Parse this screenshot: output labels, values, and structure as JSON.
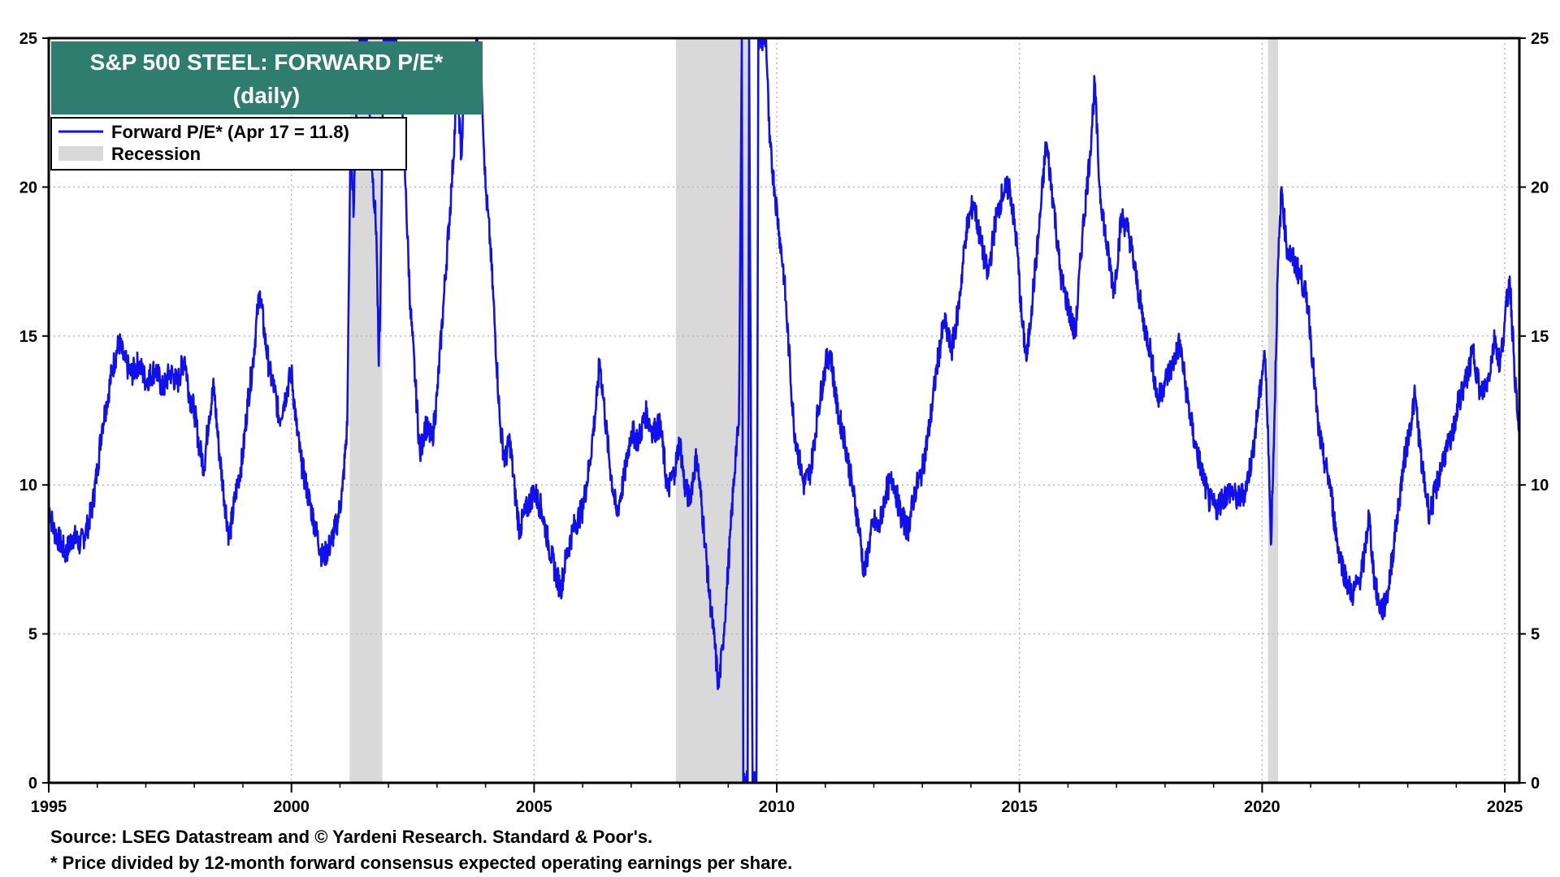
{
  "chart_data": {
    "type": "line",
    "title": "S&P 500 STEEL: FORWARD P/E*",
    "subtitle": "(daily)",
    "xlim": [
      1995,
      2025.3
    ],
    "ylim": [
      0,
      25
    ],
    "x_ticks": [
      "1995",
      "2000",
      "2005",
      "2010",
      "2015",
      "2020",
      "2025"
    ],
    "y_ticks": [
      "0",
      "5",
      "10",
      "15",
      "20",
      "25"
    ],
    "grid": true,
    "legend_position": "top-left",
    "legend": [
      {
        "label": "Forward P/E* (Apr 17 = 11.8)",
        "color": "#1010ee",
        "kind": "line"
      },
      {
        "label": "Recession",
        "color": "#d9d9d9",
        "kind": "band"
      }
    ],
    "recessions": [
      [
        2001.2,
        2001.87
      ],
      [
        2007.92,
        2009.42
      ],
      [
        2020.12,
        2020.33
      ]
    ],
    "series": [
      {
        "name": "Forward P/E* (Apr 17 = 11.8)",
        "color": "#1010ee",
        "points": [
          [
            1995.0,
            9.3
          ],
          [
            1995.1,
            8.5
          ],
          [
            1995.2,
            8.2
          ],
          [
            1995.35,
            7.7
          ],
          [
            1995.5,
            8.3
          ],
          [
            1995.65,
            8.0
          ],
          [
            1995.8,
            8.6
          ],
          [
            1995.9,
            9.3
          ],
          [
            1996.0,
            10.5
          ],
          [
            1996.1,
            12.0
          ],
          [
            1996.2,
            12.8
          ],
          [
            1996.3,
            13.8
          ],
          [
            1996.45,
            14.8
          ],
          [
            1996.55,
            14.2
          ],
          [
            1996.7,
            13.7
          ],
          [
            1996.85,
            14.1
          ],
          [
            1997.0,
            13.5
          ],
          [
            1997.2,
            13.9
          ],
          [
            1997.35,
            13.2
          ],
          [
            1997.5,
            13.8
          ],
          [
            1997.65,
            13.4
          ],
          [
            1997.8,
            14.3
          ],
          [
            1997.9,
            13.0
          ],
          [
            1998.0,
            12.5
          ],
          [
            1998.1,
            11.3
          ],
          [
            1998.2,
            10.6
          ],
          [
            1998.3,
            12.3
          ],
          [
            1998.4,
            13.3
          ],
          [
            1998.5,
            11.3
          ],
          [
            1998.6,
            9.8
          ],
          [
            1998.72,
            8.2
          ],
          [
            1998.85,
            9.7
          ],
          [
            1999.0,
            11.0
          ],
          [
            1999.1,
            12.8
          ],
          [
            1999.2,
            14.0
          ],
          [
            1999.3,
            15.8
          ],
          [
            1999.35,
            16.5
          ],
          [
            1999.45,
            15.0
          ],
          [
            1999.55,
            13.8
          ],
          [
            1999.65,
            13.2
          ],
          [
            1999.75,
            12.2
          ],
          [
            1999.85,
            12.8
          ],
          [
            2000.0,
            13.8
          ],
          [
            2000.1,
            12.0
          ],
          [
            2000.2,
            10.8
          ],
          [
            2000.35,
            9.6
          ],
          [
            2000.5,
            8.5
          ],
          [
            2000.65,
            7.5
          ],
          [
            2000.8,
            8.0
          ],
          [
            2000.95,
            8.8
          ],
          [
            2001.05,
            9.8
          ],
          [
            2001.15,
            12.0
          ],
          [
            2001.22,
            22.0
          ],
          [
            2001.28,
            19.0
          ],
          [
            2001.35,
            23.5
          ],
          [
            2001.42,
            25.0
          ],
          [
            2001.55,
            25.0
          ],
          [
            2001.65,
            21.0
          ],
          [
            2001.75,
            18.5
          ],
          [
            2001.8,
            14.0
          ],
          [
            2001.83,
            16.0
          ],
          [
            2001.9,
            25.0
          ],
          [
            2002.1,
            25.0
          ],
          [
            2002.25,
            24.0
          ],
          [
            2002.35,
            20.0
          ],
          [
            2002.45,
            16.0
          ],
          [
            2002.55,
            13.5
          ],
          [
            2002.65,
            11.0
          ],
          [
            2002.75,
            12.0
          ],
          [
            2002.9,
            11.5
          ],
          [
            2003.0,
            13.0
          ],
          [
            2003.15,
            16.5
          ],
          [
            2003.3,
            20.0
          ],
          [
            2003.42,
            23.5
          ],
          [
            2003.5,
            21.0
          ],
          [
            2003.6,
            24.5
          ],
          [
            2003.7,
            22.5
          ],
          [
            2003.82,
            25.0
          ],
          [
            2003.92,
            23.5
          ],
          [
            2004.0,
            20.0
          ],
          [
            2004.1,
            18.0
          ],
          [
            2004.2,
            15.0
          ],
          [
            2004.3,
            12.0
          ],
          [
            2004.4,
            10.8
          ],
          [
            2004.5,
            11.5
          ],
          [
            2004.6,
            9.8
          ],
          [
            2004.7,
            8.5
          ],
          [
            2004.85,
            9.2
          ],
          [
            2005.0,
            9.8
          ],
          [
            2005.15,
            9.2
          ],
          [
            2005.3,
            8.0
          ],
          [
            2005.45,
            7.0
          ],
          [
            2005.55,
            6.5
          ],
          [
            2005.65,
            7.5
          ],
          [
            2005.8,
            8.5
          ],
          [
            2006.0,
            9.2
          ],
          [
            2006.15,
            10.8
          ],
          [
            2006.3,
            13.0
          ],
          [
            2006.35,
            14.2
          ],
          [
            2006.45,
            12.5
          ],
          [
            2006.55,
            10.8
          ],
          [
            2006.7,
            9.0
          ],
          [
            2006.85,
            10.2
          ],
          [
            2007.0,
            11.8
          ],
          [
            2007.15,
            11.5
          ],
          [
            2007.3,
            12.4
          ],
          [
            2007.45,
            11.8
          ],
          [
            2007.6,
            12.0
          ],
          [
            2007.75,
            9.8
          ],
          [
            2007.9,
            10.5
          ],
          [
            2008.0,
            11.5
          ],
          [
            2008.1,
            10.0
          ],
          [
            2008.2,
            9.5
          ],
          [
            2008.35,
            11.0
          ],
          [
            2008.5,
            8.5
          ],
          [
            2008.6,
            6.5
          ],
          [
            2008.7,
            5.0
          ],
          [
            2008.8,
            3.2
          ],
          [
            2008.88,
            4.5
          ],
          [
            2008.95,
            6.0
          ],
          [
            2009.05,
            8.5
          ],
          [
            2009.15,
            11.0
          ],
          [
            2009.22,
            12.0
          ],
          [
            2009.28,
            25.0
          ],
          [
            2009.31,
            0.0
          ],
          [
            2009.4,
            0.0
          ],
          [
            2009.43,
            25.0
          ],
          [
            2009.5,
            0.0
          ],
          [
            2009.58,
            0.0
          ],
          [
            2009.62,
            25.0
          ],
          [
            2009.78,
            25.0
          ],
          [
            2009.85,
            21.5
          ],
          [
            2009.95,
            20.0
          ],
          [
            2010.05,
            18.5
          ],
          [
            2010.15,
            17.0
          ],
          [
            2010.25,
            14.5
          ],
          [
            2010.35,
            12.0
          ],
          [
            2010.45,
            11.0
          ],
          [
            2010.55,
            10.0
          ],
          [
            2010.7,
            10.5
          ],
          [
            2010.85,
            12.5
          ],
          [
            2011.0,
            14.0
          ],
          [
            2011.1,
            14.5
          ],
          [
            2011.25,
            12.5
          ],
          [
            2011.4,
            11.5
          ],
          [
            2011.55,
            10.0
          ],
          [
            2011.7,
            8.5
          ],
          [
            2011.8,
            7.0
          ],
          [
            2011.9,
            8.0
          ],
          [
            2012.0,
            8.8
          ],
          [
            2012.1,
            8.5
          ],
          [
            2012.25,
            9.8
          ],
          [
            2012.4,
            10.2
          ],
          [
            2012.55,
            9.0
          ],
          [
            2012.7,
            8.5
          ],
          [
            2012.85,
            9.8
          ],
          [
            2013.0,
            10.5
          ],
          [
            2013.15,
            12.0
          ],
          [
            2013.3,
            14.0
          ],
          [
            2013.45,
            15.5
          ],
          [
            2013.6,
            14.5
          ],
          [
            2013.75,
            16.0
          ],
          [
            2013.9,
            18.5
          ],
          [
            2014.05,
            19.5
          ],
          [
            2014.2,
            18.2
          ],
          [
            2014.35,
            17.0
          ],
          [
            2014.5,
            18.8
          ],
          [
            2014.65,
            19.8
          ],
          [
            2014.8,
            20.0
          ],
          [
            2014.95,
            18.0
          ],
          [
            2015.05,
            15.5
          ],
          [
            2015.15,
            14.2
          ],
          [
            2015.25,
            16.0
          ],
          [
            2015.4,
            18.5
          ],
          [
            2015.55,
            21.5
          ],
          [
            2015.7,
            19.5
          ],
          [
            2015.85,
            17.0
          ],
          [
            2016.0,
            16.0
          ],
          [
            2016.15,
            15.0
          ],
          [
            2016.3,
            18.5
          ],
          [
            2016.45,
            21.0
          ],
          [
            2016.55,
            23.5
          ],
          [
            2016.65,
            20.0
          ],
          [
            2016.8,
            18.0
          ],
          [
            2016.95,
            16.5
          ],
          [
            2017.1,
            19.0
          ],
          [
            2017.25,
            18.5
          ],
          [
            2017.4,
            17.0
          ],
          [
            2017.55,
            15.5
          ],
          [
            2017.7,
            14.5
          ],
          [
            2017.85,
            12.8
          ],
          [
            2018.0,
            13.5
          ],
          [
            2018.15,
            14.0
          ],
          [
            2018.3,
            14.8
          ],
          [
            2018.45,
            13.0
          ],
          [
            2018.6,
            11.5
          ],
          [
            2018.75,
            10.5
          ],
          [
            2018.9,
            9.5
          ],
          [
            2019.05,
            9.2
          ],
          [
            2019.2,
            9.6
          ],
          [
            2019.35,
            9.8
          ],
          [
            2019.5,
            9.5
          ],
          [
            2019.65,
            9.8
          ],
          [
            2019.8,
            11.0
          ],
          [
            2019.95,
            13.0
          ],
          [
            2020.05,
            14.5
          ],
          [
            2020.12,
            12.0
          ],
          [
            2020.18,
            8.0
          ],
          [
            2020.25,
            12.0
          ],
          [
            2020.32,
            17.0
          ],
          [
            2020.4,
            20.0
          ],
          [
            2020.5,
            18.0
          ],
          [
            2020.65,
            17.5
          ],
          [
            2020.8,
            17.0
          ],
          [
            2020.95,
            16.0
          ],
          [
            2021.05,
            14.0
          ],
          [
            2021.15,
            12.0
          ],
          [
            2021.25,
            11.0
          ],
          [
            2021.4,
            10.0
          ],
          [
            2021.55,
            8.0
          ],
          [
            2021.7,
            7.0
          ],
          [
            2021.85,
            6.3
          ],
          [
            2022.0,
            6.8
          ],
          [
            2022.1,
            7.5
          ],
          [
            2022.2,
            9.0
          ],
          [
            2022.3,
            7.0
          ],
          [
            2022.4,
            6.0
          ],
          [
            2022.5,
            5.8
          ],
          [
            2022.6,
            6.5
          ],
          [
            2022.75,
            8.5
          ],
          [
            2022.9,
            10.5
          ],
          [
            2023.05,
            12.0
          ],
          [
            2023.15,
            13.0
          ],
          [
            2023.3,
            10.5
          ],
          [
            2023.45,
            9.0
          ],
          [
            2023.6,
            10.0
          ],
          [
            2023.75,
            11.0
          ],
          [
            2023.9,
            11.5
          ],
          [
            2024.05,
            12.8
          ],
          [
            2024.2,
            13.5
          ],
          [
            2024.35,
            14.5
          ],
          [
            2024.5,
            13.0
          ],
          [
            2024.65,
            13.5
          ],
          [
            2024.8,
            15.0
          ],
          [
            2024.9,
            14.0
          ],
          [
            2025.0,
            15.5
          ],
          [
            2025.1,
            17.0
          ],
          [
            2025.18,
            14.5
          ],
          [
            2025.25,
            12.5
          ],
          [
            2025.29,
            11.8
          ]
        ]
      }
    ]
  },
  "footnotes": {
    "source": "Source: LSEG Datastream and © Yardeni Research. Standard & Poor's.",
    "note": "* Price divided by 12-month forward consensus expected operating earnings per share."
  },
  "colors": {
    "title_bg": "#2e7d6f",
    "line": "#1010ee",
    "recession": "#d9d9d9",
    "grid": "#bbbbbb"
  }
}
